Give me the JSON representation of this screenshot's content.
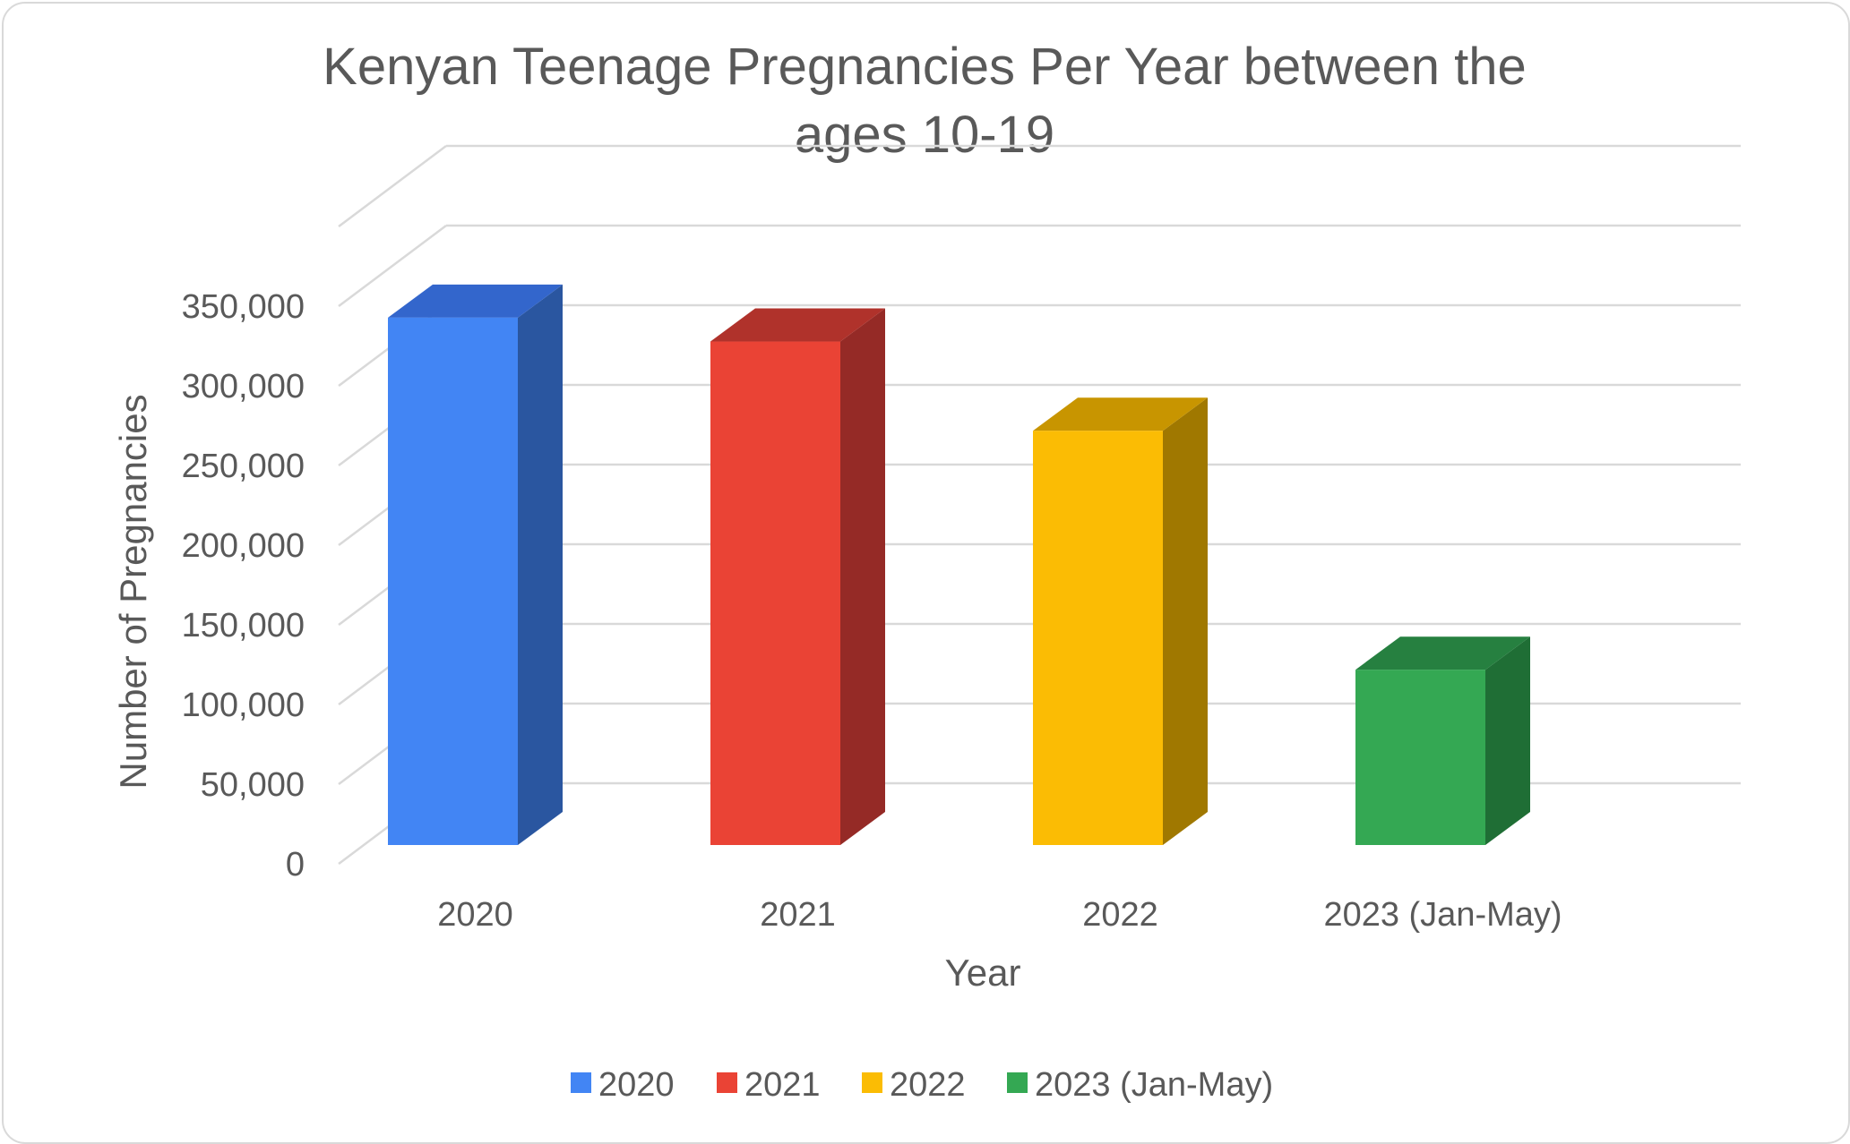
{
  "chart_data": {
    "type": "bar",
    "title_lines": [
      "Kenyan Teenage Pregnancies Per Year between the",
      "ages 10-19"
    ],
    "title": "Kenyan Teenage Pregnancies Per Year between the ages 10-19",
    "xlabel": "Year",
    "ylabel": "Number of Pregnancies",
    "categories": [
      "2020",
      "2021",
      "2022",
      "2023 (Jan-May)"
    ],
    "values": [
      331000,
      316000,
      260000,
      110000
    ],
    "ylim": [
      0,
      350000
    ],
    "yticks": [
      0,
      50000,
      100000,
      150000,
      200000,
      250000,
      300000,
      350000
    ],
    "ytick_labels": [
      "0",
      "50,000",
      "100,000",
      "150,000",
      "200,000",
      "250,000",
      "300,000",
      "350,000"
    ],
    "colors": [
      "#4285F4",
      "#EA4335",
      "#FBBC04",
      "#34A853"
    ],
    "side_colors": [
      "#2A56A0",
      "#952A26",
      "#A07800",
      "#1F6E35"
    ],
    "top_colors": [
      "#3366CC",
      "#B0322B",
      "#C89500",
      "#268040"
    ],
    "grid": true,
    "style": "3d-columns",
    "legend": {
      "position": "bottom",
      "entries": [
        "2020",
        "2021",
        "2022",
        "2023 (Jan-May)"
      ]
    }
  }
}
